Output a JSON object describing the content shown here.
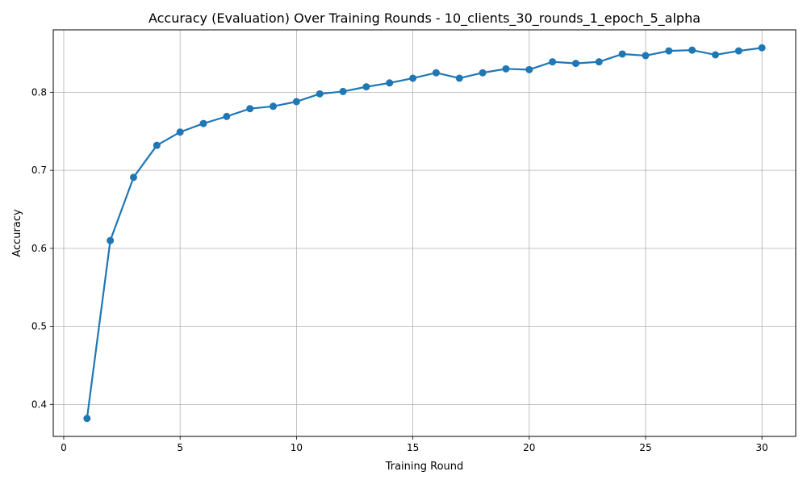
{
  "chart_data": {
    "type": "line",
    "title": "Accuracy (Evaluation) Over Training Rounds - 10_clients_30_rounds_1_epoch_5_alpha",
    "xlabel": "Training Round",
    "ylabel": "Accuracy",
    "xlim": [
      -0.45,
      31.45
    ],
    "ylim": [
      0.359,
      0.88
    ],
    "x_ticks": [
      0,
      5,
      10,
      15,
      20,
      25,
      30
    ],
    "y_ticks": [
      0.4,
      0.5,
      0.6,
      0.7,
      0.8
    ],
    "x_tick_labels": [
      "0",
      "5",
      "10",
      "15",
      "20",
      "25",
      "30"
    ],
    "y_tick_labels": [
      "0.4",
      "0.5",
      "0.6",
      "0.7",
      "0.8"
    ],
    "grid": true,
    "legend": "none",
    "color": "#1f77b4",
    "series": [
      {
        "x": [
          1,
          2,
          3,
          4,
          5,
          6,
          7,
          8,
          9,
          10,
          11,
          12,
          13,
          14,
          15,
          16,
          17,
          18,
          19,
          20,
          21,
          22,
          23,
          24,
          25,
          26,
          27,
          28,
          29,
          30
        ],
        "values": [
          0.382,
          0.61,
          0.691,
          0.732,
          0.749,
          0.76,
          0.769,
          0.779,
          0.782,
          0.788,
          0.798,
          0.801,
          0.807,
          0.812,
          0.818,
          0.825,
          0.818,
          0.825,
          0.83,
          0.829,
          0.839,
          0.837,
          0.839,
          0.849,
          0.847,
          0.853,
          0.854,
          0.848,
          0.853,
          0.857
        ]
      }
    ]
  }
}
